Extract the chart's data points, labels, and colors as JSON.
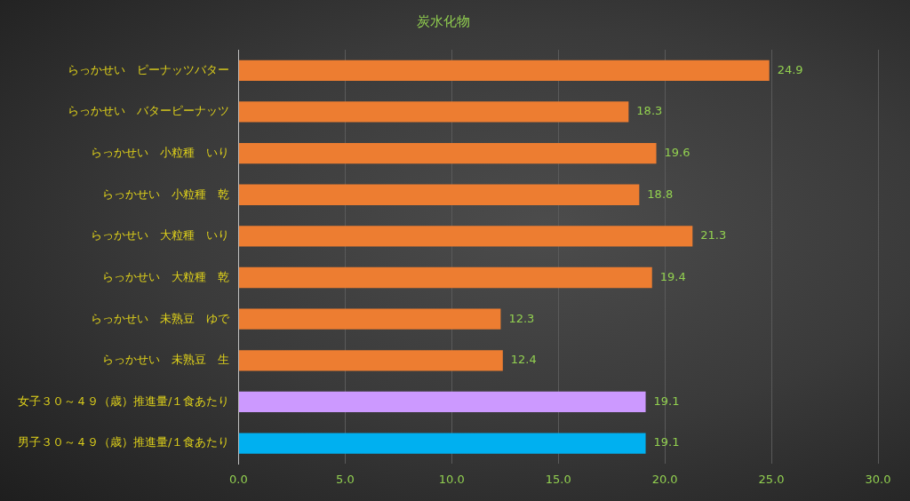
{
  "chart_data": {
    "type": "bar",
    "orientation": "horizontal",
    "title": "炭水化物",
    "categories": [
      "らっかせい　ピーナッツバター",
      "らっかせい　バターピーナッツ",
      "らっかせい　小粒種　いり",
      "らっかせい　小粒種　乾",
      "らっかせい　大粒種　いり",
      "らっかせい　大粒種　乾",
      "らっかせい　未熟豆　ゆで",
      "らっかせい　未熟豆　生",
      "女子３０～４９（歳）推進量/１食あたり",
      "男子３０～４９（歳）推進量/１食あたり"
    ],
    "values": [
      24.9,
      18.3,
      19.6,
      18.8,
      21.3,
      19.4,
      12.3,
      12.4,
      19.1,
      19.1
    ],
    "colors": [
      "#ed7d31",
      "#ed7d31",
      "#ed7d31",
      "#ed7d31",
      "#ed7d31",
      "#ed7d31",
      "#ed7d31",
      "#ed7d31",
      "#cc99ff",
      "#00b0f0"
    ],
    "xlim": [
      0,
      30
    ],
    "xticks": [
      {
        "value": 0,
        "label": "0.0"
      },
      {
        "value": 5,
        "label": "5.0"
      },
      {
        "value": 10,
        "label": "10.0"
      },
      {
        "value": 15,
        "label": "15.0"
      },
      {
        "value": 20,
        "label": "20.0"
      },
      {
        "value": 25,
        "label": "25.0"
      },
      {
        "value": 30,
        "label": "30.0"
      }
    ],
    "grid": "x",
    "legend": false,
    "data_labels": true
  }
}
